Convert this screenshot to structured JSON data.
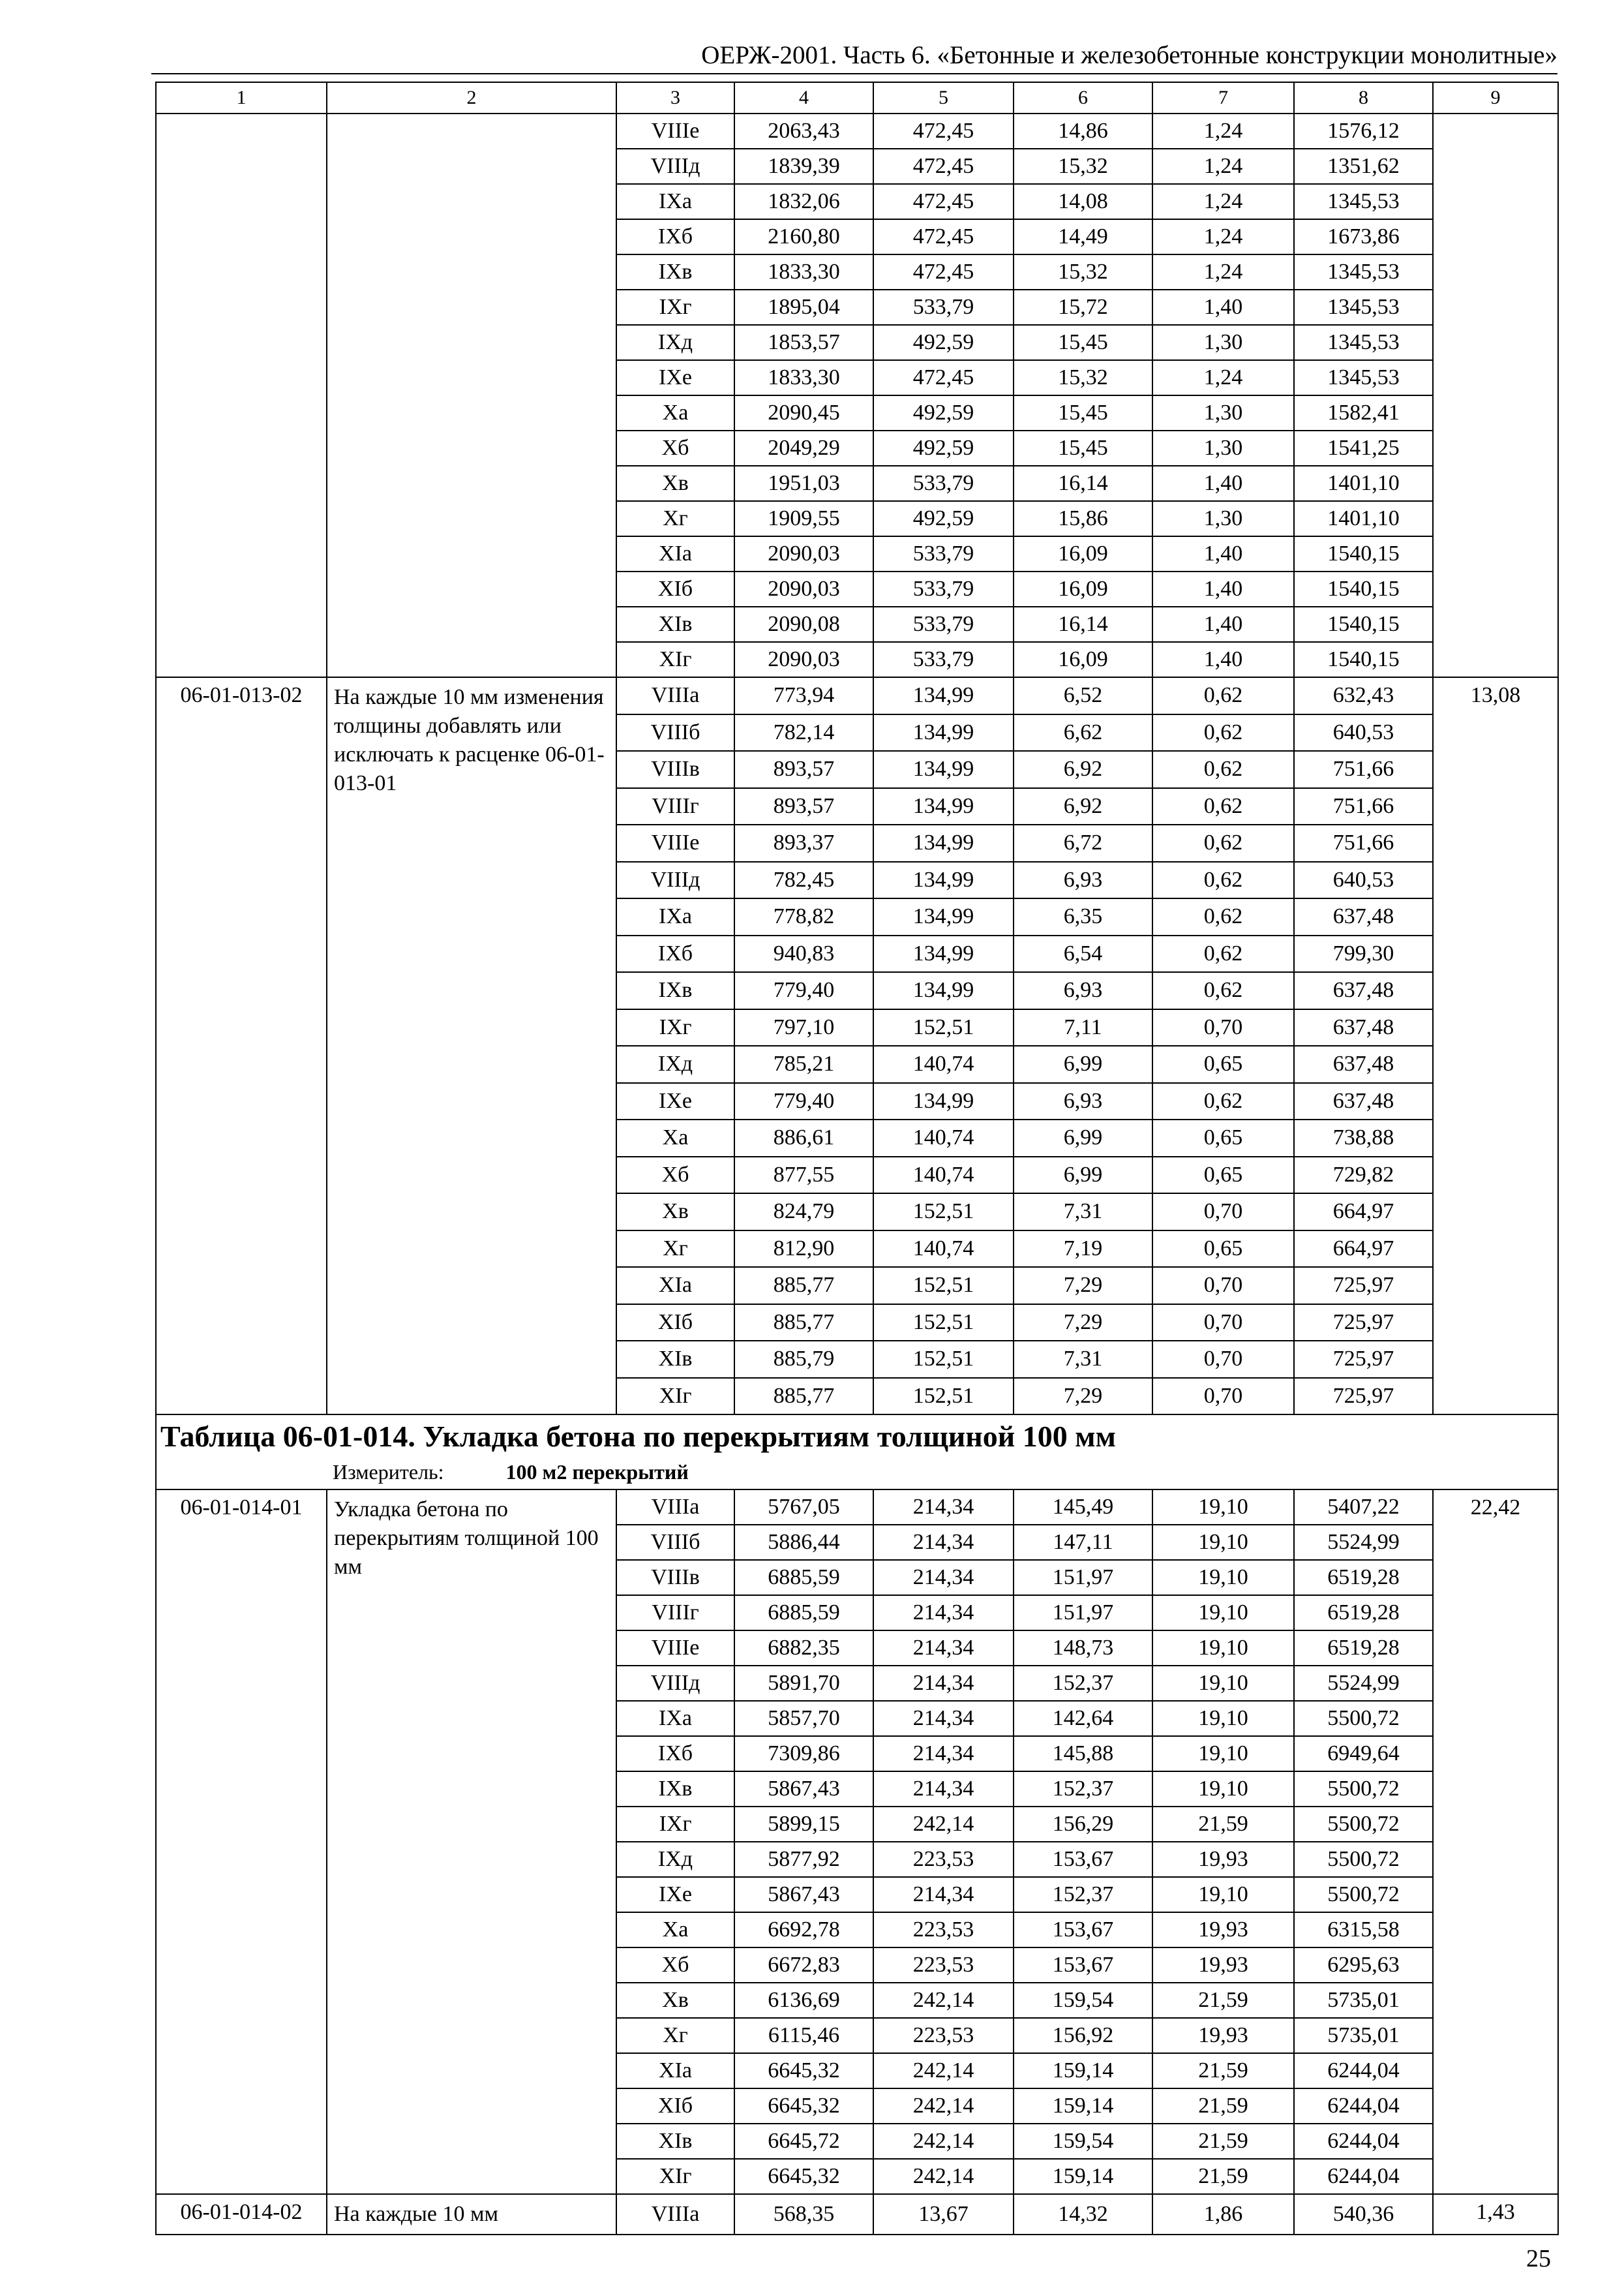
{
  "header": {
    "running_title": "ОЕРЖ-2001. Часть 6. «Бетонные и железобетонные конструкции монолитные»",
    "page_number": "25"
  },
  "column_numbers": [
    "1",
    "2",
    "3",
    "4",
    "5",
    "6",
    "7",
    "8",
    "9"
  ],
  "sections": [
    {
      "code": "",
      "description": "",
      "col9": "",
      "rows": [
        [
          "VIIIе",
          "2063,43",
          "472,45",
          "14,86",
          "1,24",
          "1576,12"
        ],
        [
          "VIIIд",
          "1839,39",
          "472,45",
          "15,32",
          "1,24",
          "1351,62"
        ],
        [
          "IXа",
          "1832,06",
          "472,45",
          "14,08",
          "1,24",
          "1345,53"
        ],
        [
          "IXб",
          "2160,80",
          "472,45",
          "14,49",
          "1,24",
          "1673,86"
        ],
        [
          "IXв",
          "1833,30",
          "472,45",
          "15,32",
          "1,24",
          "1345,53"
        ],
        [
          "IXг",
          "1895,04",
          "533,79",
          "15,72",
          "1,40",
          "1345,53"
        ],
        [
          "IXд",
          "1853,57",
          "492,59",
          "15,45",
          "1,30",
          "1345,53"
        ],
        [
          "IXе",
          "1833,30",
          "472,45",
          "15,32",
          "1,24",
          "1345,53"
        ],
        [
          "Xа",
          "2090,45",
          "492,59",
          "15,45",
          "1,30",
          "1582,41"
        ],
        [
          "Xб",
          "2049,29",
          "492,59",
          "15,45",
          "1,30",
          "1541,25"
        ],
        [
          "Xв",
          "1951,03",
          "533,79",
          "16,14",
          "1,40",
          "1401,10"
        ],
        [
          "Xг",
          "1909,55",
          "492,59",
          "15,86",
          "1,30",
          "1401,10"
        ],
        [
          "XIа",
          "2090,03",
          "533,79",
          "16,09",
          "1,40",
          "1540,15"
        ],
        [
          "XIб",
          "2090,03",
          "533,79",
          "16,09",
          "1,40",
          "1540,15"
        ],
        [
          "XIв",
          "2090,08",
          "533,79",
          "16,14",
          "1,40",
          "1540,15"
        ],
        [
          "XIг",
          "2090,03",
          "533,79",
          "16,09",
          "1,40",
          "1540,15"
        ]
      ]
    },
    {
      "code": "06-01-013-02",
      "description": "На каждые 10 мм изменения толщины добавлять или исключать к расценке 06-01-013-01",
      "col9": "13,08",
      "rows": [
        [
          "VIIIа",
          "773,94",
          "134,99",
          "6,52",
          "0,62",
          "632,43"
        ],
        [
          "VIIIб",
          "782,14",
          "134,99",
          "6,62",
          "0,62",
          "640,53"
        ],
        [
          "VIIIв",
          "893,57",
          "134,99",
          "6,92",
          "0,62",
          "751,66"
        ],
        [
          "VIIIг",
          "893,57",
          "134,99",
          "6,92",
          "0,62",
          "751,66"
        ],
        [
          "VIIIе",
          "893,37",
          "134,99",
          "6,72",
          "0,62",
          "751,66"
        ],
        [
          "VIIIд",
          "782,45",
          "134,99",
          "6,93",
          "0,62",
          "640,53"
        ],
        [
          "IXа",
          "778,82",
          "134,99",
          "6,35",
          "0,62",
          "637,48"
        ],
        [
          "IXб",
          "940,83",
          "134,99",
          "6,54",
          "0,62",
          "799,30"
        ],
        [
          "IXв",
          "779,40",
          "134,99",
          "6,93",
          "0,62",
          "637,48"
        ],
        [
          "IXг",
          "797,10",
          "152,51",
          "7,11",
          "0,70",
          "637,48"
        ],
        [
          "IXд",
          "785,21",
          "140,74",
          "6,99",
          "0,65",
          "637,48"
        ],
        [
          "IXе",
          "779,40",
          "134,99",
          "6,93",
          "0,62",
          "637,48"
        ],
        [
          "Xа",
          "886,61",
          "140,74",
          "6,99",
          "0,65",
          "738,88"
        ],
        [
          "Xб",
          "877,55",
          "140,74",
          "6,99",
          "0,65",
          "729,82"
        ],
        [
          "Xв",
          "824,79",
          "152,51",
          "7,31",
          "0,70",
          "664,97"
        ],
        [
          "Xг",
          "812,90",
          "140,74",
          "7,19",
          "0,65",
          "664,97"
        ],
        [
          "XIа",
          "885,77",
          "152,51",
          "7,29",
          "0,70",
          "725,97"
        ],
        [
          "XIб",
          "885,77",
          "152,51",
          "7,29",
          "0,70",
          "725,97"
        ],
        [
          "XIв",
          "885,79",
          "152,51",
          "7,31",
          "0,70",
          "725,97"
        ],
        [
          "XIг",
          "885,77",
          "152,51",
          "7,29",
          "0,70",
          "725,97"
        ]
      ]
    },
    {
      "code": "06-01-014-01",
      "description": "Укладка бетона по перекрытиям толщиной 100 мм",
      "col9": "22,42",
      "rows": [
        [
          "VIIIа",
          "5767,05",
          "214,34",
          "145,49",
          "19,10",
          "5407,22"
        ],
        [
          "VIIIб",
          "5886,44",
          "214,34",
          "147,11",
          "19,10",
          "5524,99"
        ],
        [
          "VIIIв",
          "6885,59",
          "214,34",
          "151,97",
          "19,10",
          "6519,28"
        ],
        [
          "VIIIг",
          "6885,59",
          "214,34",
          "151,97",
          "19,10",
          "6519,28"
        ],
        [
          "VIIIе",
          "6882,35",
          "214,34",
          "148,73",
          "19,10",
          "6519,28"
        ],
        [
          "VIIIд",
          "5891,70",
          "214,34",
          "152,37",
          "19,10",
          "5524,99"
        ],
        [
          "IXа",
          "5857,70",
          "214,34",
          "142,64",
          "19,10",
          "5500,72"
        ],
        [
          "IXб",
          "7309,86",
          "214,34",
          "145,88",
          "19,10",
          "6949,64"
        ],
        [
          "IXв",
          "5867,43",
          "214,34",
          "152,37",
          "19,10",
          "5500,72"
        ],
        [
          "IXг",
          "5899,15",
          "242,14",
          "156,29",
          "21,59",
          "5500,72"
        ],
        [
          "IXд",
          "5877,92",
          "223,53",
          "153,67",
          "19,93",
          "5500,72"
        ],
        [
          "IXе",
          "5867,43",
          "214,34",
          "152,37",
          "19,10",
          "5500,72"
        ],
        [
          "Xа",
          "6692,78",
          "223,53",
          "153,67",
          "19,93",
          "6315,58"
        ],
        [
          "Xб",
          "6672,83",
          "223,53",
          "153,67",
          "19,93",
          "6295,63"
        ],
        [
          "Xв",
          "6136,69",
          "242,14",
          "159,54",
          "21,59",
          "5735,01"
        ],
        [
          "Xг",
          "6115,46",
          "223,53",
          "156,92",
          "19,93",
          "5735,01"
        ],
        [
          "XIа",
          "6645,32",
          "242,14",
          "159,14",
          "21,59",
          "6244,04"
        ],
        [
          "XIб",
          "6645,32",
          "242,14",
          "159,14",
          "21,59",
          "6244,04"
        ],
        [
          "XIв",
          "6645,72",
          "242,14",
          "159,54",
          "21,59",
          "6244,04"
        ],
        [
          "XIг",
          "6645,32",
          "242,14",
          "159,14",
          "21,59",
          "6244,04"
        ]
      ]
    },
    {
      "code": "06-01-014-02",
      "description": "На каждые 10 мм",
      "col9": "1,43",
      "rows": [
        [
          "VIIIа",
          "568,35",
          "13,67",
          "14,32",
          "1,86",
          "540,36"
        ]
      ]
    }
  ],
  "table_014": {
    "title": "Таблица 06-01-014. Укладка бетона по перекрытиям толщиной 100 мм",
    "unit_label": "Измеритель:",
    "unit_value": "100 м2 перекрытий"
  }
}
